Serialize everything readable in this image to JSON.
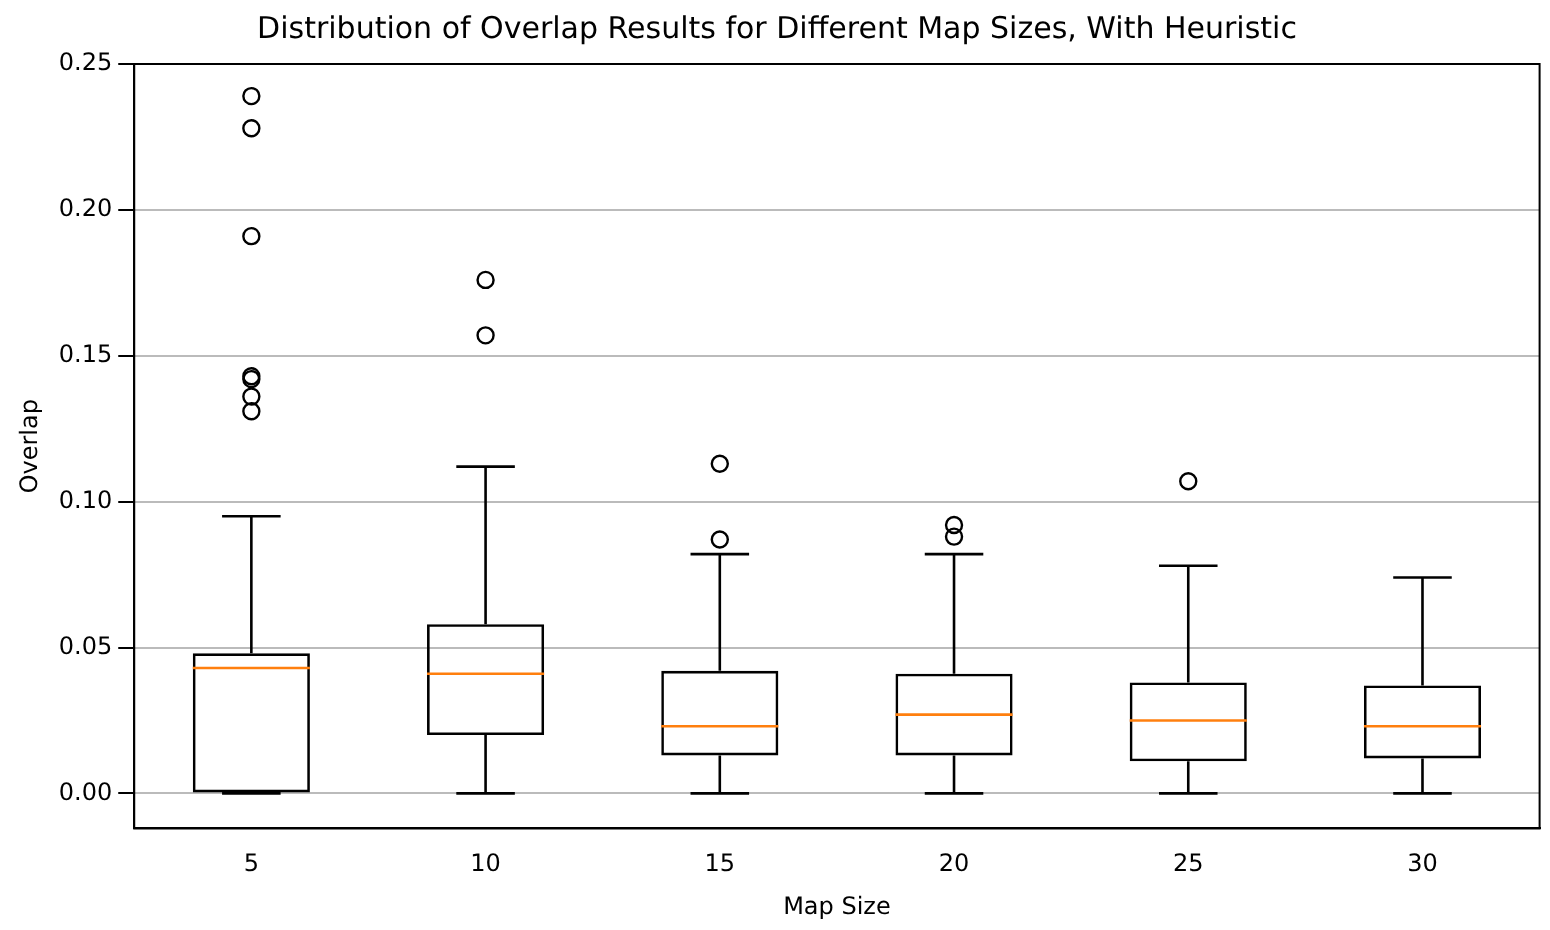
{
  "chart_data": {
    "type": "box",
    "title": "Distribution of Overlap Results for Different Map Sizes, With Heuristic",
    "xlabel": "Map Size",
    "ylabel": "Overlap",
    "categories": [
      "5",
      "10",
      "15",
      "20",
      "25",
      "30"
    ],
    "boxes": [
      {
        "low": 0,
        "q1": 0,
        "median": 0.043,
        "q3": 0.048,
        "high": 0.095,
        "outliers": [
          0.239,
          0.228,
          0.191,
          0.143,
          0.142,
          0.136,
          0.131
        ]
      },
      {
        "low": 0,
        "q1": 0.02,
        "median": 0.041,
        "q3": 0.058,
        "high": 0.112,
        "outliers": [
          0.176,
          0.157
        ]
      },
      {
        "low": 0,
        "q1": 0.013,
        "median": 0.023,
        "q3": 0.042,
        "high": 0.082,
        "outliers": [
          0.113,
          0.087
        ]
      },
      {
        "low": 0,
        "q1": 0.013,
        "median": 0.027,
        "q3": 0.041,
        "high": 0.082,
        "outliers": [
          0.092,
          0.088
        ]
      },
      {
        "low": 0,
        "q1": 0.011,
        "median": 0.025,
        "q3": 0.038,
        "high": 0.078,
        "outliers": [
          0.107
        ]
      },
      {
        "low": 0,
        "q1": 0.012,
        "median": 0.023,
        "q3": 0.037,
        "high": 0.074
      }
    ],
    "color": "#000000",
    "ylim": [
      -0.012,
      0.25
    ],
    "yticks": [
      {
        "value": 0,
        "label": "0.00"
      },
      {
        "value": 0.05,
        "label": "0.05"
      },
      {
        "value": 0.1,
        "label": "0.10"
      },
      {
        "value": 0.15,
        "label": "0.15"
      },
      {
        "value": 0.2,
        "label": "0.20"
      },
      {
        "value": 0.25,
        "label": "0.25"
      }
    ],
    "grid": "y",
    "legend": false,
    "marker": "circle"
  }
}
